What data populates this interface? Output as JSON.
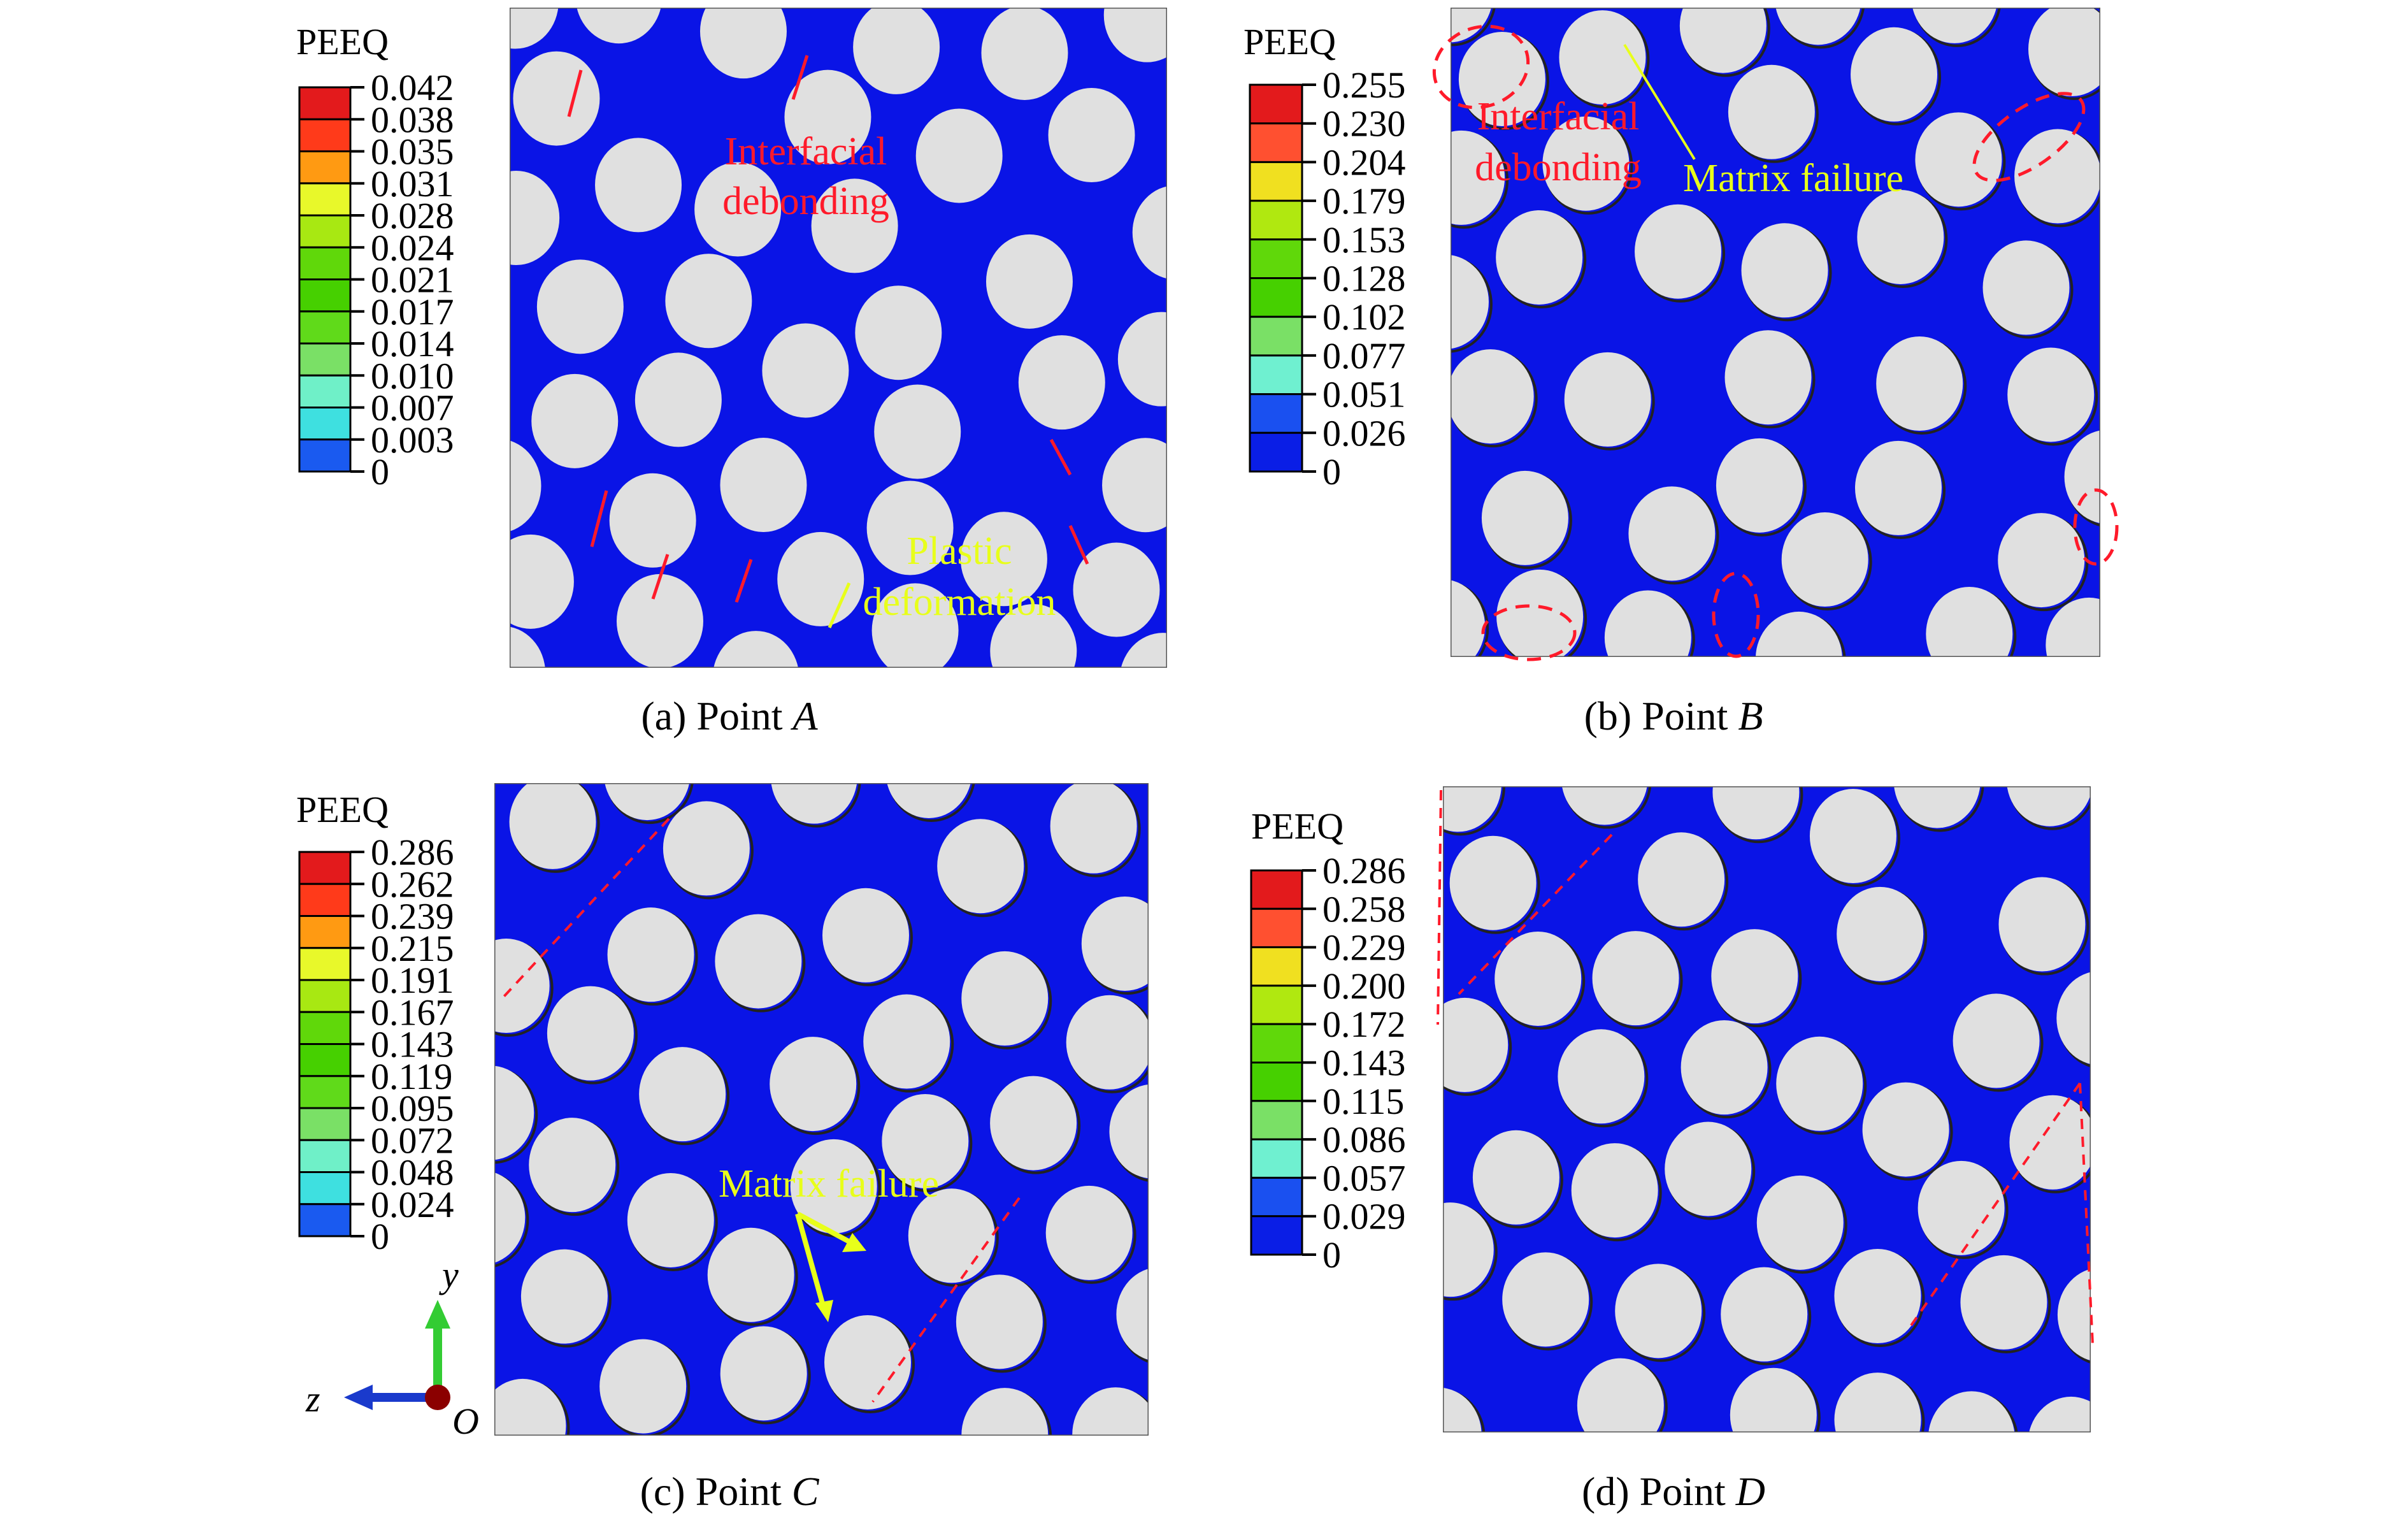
{
  "colors": {
    "matrix": "#0a14e6",
    "fiber": "#e0e0e0",
    "annotation_red": "#ff1a2a",
    "annotation_yellow": "#e8ff1a",
    "axis_y": "#33cc33",
    "axis_z": "#1a3acc",
    "axis_origin": "#8b0000"
  },
  "legend_colors_12": [
    "#e31a1c",
    "#ff3a1a",
    "#ff9a12",
    "#e8f82a",
    "#a8e812",
    "#60d80a",
    "#46d000",
    "#60da1a",
    "#7ae066",
    "#6ff0c8",
    "#3ee0e0",
    "#1a5af0",
    "#0a1ee6"
  ],
  "legend_colors_10": [
    "#e31a1c",
    "#ff5030",
    "#f0e020",
    "#b0e810",
    "#60d80a",
    "#46d000",
    "#7ae066",
    "#6ff0d0",
    "#1a50f0",
    "#0a1ee6"
  ],
  "panels": [
    {
      "id": "a",
      "legend_title": "PEEQ",
      "legend_ticks": [
        "0.042",
        "0.038",
        "0.035",
        "0.031",
        "0.028",
        "0.024",
        "0.021",
        "0.017",
        "0.014",
        "0.010",
        "0.007",
        "0.003",
        "0"
      ],
      "caption_prefix": "(a) Point ",
      "caption_point": "A",
      "annotations": [
        {
          "lines": [
            "Interfacial",
            "debonding"
          ],
          "color": "red"
        },
        {
          "lines": [
            "Plastic",
            "deformation"
          ],
          "color": "yellow"
        }
      ]
    },
    {
      "id": "b",
      "legend_title": "PEEQ",
      "legend_ticks": [
        "0.255",
        "0.230",
        "0.204",
        "0.179",
        "0.153",
        "0.128",
        "0.102",
        "0.077",
        "0.051",
        "0.026",
        "0"
      ],
      "caption_prefix": "(b) Point ",
      "caption_point": "B",
      "annotations": [
        {
          "lines": [
            "Interfacial",
            "debonding"
          ],
          "color": "red"
        },
        {
          "lines": [
            "Matrix failure"
          ],
          "color": "yellow"
        }
      ]
    },
    {
      "id": "c",
      "legend_title": "PEEQ",
      "legend_ticks": [
        "0.286",
        "0.262",
        "0.239",
        "0.215",
        "0.191",
        "0.167",
        "0.143",
        "0.119",
        "0.095",
        "0.072",
        "0.048",
        "0.024",
        "0"
      ],
      "caption_prefix": "(c) Point ",
      "caption_point": "C",
      "annotations": [
        {
          "lines": [
            "Matrix failure"
          ],
          "color": "yellow"
        }
      ],
      "axes": {
        "y": "y",
        "z": "z",
        "origin": "O"
      }
    },
    {
      "id": "d",
      "legend_title": "PEEQ",
      "legend_ticks": [
        "0.286",
        "0.258",
        "0.229",
        "0.200",
        "0.172",
        "0.143",
        "0.115",
        "0.086",
        "0.057",
        "0.029",
        "0"
      ],
      "caption_prefix": "(d) Point ",
      "caption_point": "D",
      "annotations": []
    }
  ]
}
